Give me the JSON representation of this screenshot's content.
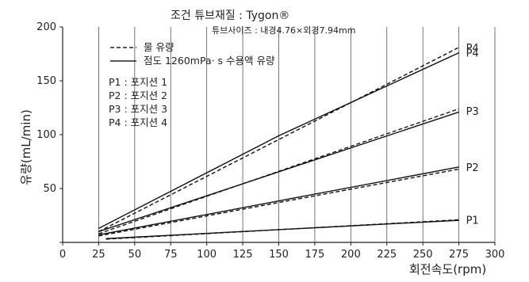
{
  "chart_data": {
    "type": "line",
    "title": "조건  튜브재질 : Tygon®",
    "subtitle": "튜브사이즈 : 내경4.76×외경7.94mm",
    "xlabel": "회전속도(rpm)",
    "ylabel": "유량(mL/min)",
    "xlim": [
      0,
      300
    ],
    "ylim": [
      0,
      200
    ],
    "x_ticks": [
      0,
      25,
      50,
      75,
      100,
      125,
      150,
      175,
      200,
      225,
      250,
      275,
      300
    ],
    "y_ticks": [
      0,
      50,
      100,
      150,
      200
    ],
    "grid": "vertical",
    "legend": [
      {
        "label": "물 유량",
        "style": "dashed"
      },
      {
        "label": "점도 1260mPa· s 수용액 유량",
        "style": "solid"
      }
    ],
    "position_notes": [
      "P1 : 포지션 1",
      "P2 : 포지션 2",
      "P3 : 포지션 3",
      "P4 : 포지션 4"
    ],
    "series": [
      {
        "name": "P4",
        "style": "dashed",
        "x": [
          25,
          275
        ],
        "y": [
          10,
          181
        ]
      },
      {
        "name": "P4",
        "style": "solid",
        "x": [
          25,
          150,
          275
        ],
        "y": [
          13,
          99,
          176
        ]
      },
      {
        "name": "P3",
        "style": "dashed",
        "x": [
          25,
          275
        ],
        "y": [
          8,
          124
        ]
      },
      {
        "name": "P3",
        "style": "solid",
        "x": [
          25,
          275
        ],
        "y": [
          10,
          121
        ]
      },
      {
        "name": "P2",
        "style": "dashed",
        "x": [
          25,
          275
        ],
        "y": [
          6,
          68
        ]
      },
      {
        "name": "P2",
        "style": "solid",
        "x": [
          25,
          275
        ],
        "y": [
          7,
          70
        ]
      },
      {
        "name": "P1",
        "style": "dashed",
        "x": [
          30,
          275
        ],
        "y": [
          3,
          21
        ]
      },
      {
        "name": "P1",
        "style": "solid",
        "x": [
          30,
          275
        ],
        "y": [
          3.5,
          20.5
        ]
      }
    ],
    "end_labels": [
      {
        "text": "P4",
        "x": 275,
        "y": 181
      },
      {
        "text": "P4",
        "x": 275,
        "y": 176
      },
      {
        "text": "P3",
        "x": 275,
        "y": 122
      },
      {
        "text": "P2",
        "x": 275,
        "y": 70
      },
      {
        "text": "P1",
        "x": 275,
        "y": 21
      }
    ]
  }
}
